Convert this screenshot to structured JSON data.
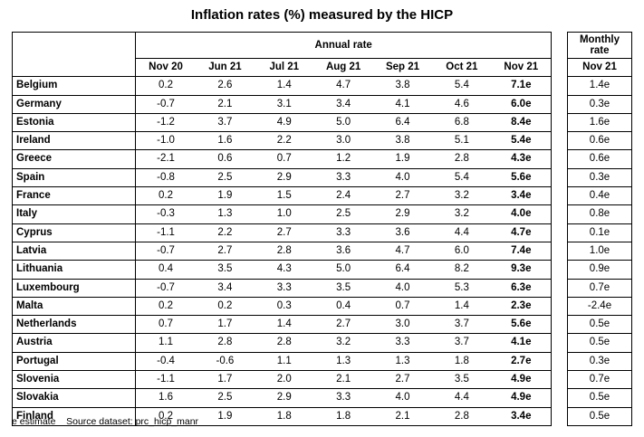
{
  "title": "Inflation rates (%) measured by the HICP",
  "annual_header": "Annual rate",
  "monthly_header_line1": "Monthly",
  "monthly_header_line2": "rate",
  "periods": [
    "Nov 20",
    "Jun 21",
    "Jul 21",
    "Aug 21",
    "Sep 21",
    "Oct 21",
    "Nov 21"
  ],
  "monthly_period": "Nov 21",
  "rows": [
    {
      "country": "Belgium",
      "annual": [
        "0.2",
        "2.6",
        "1.4",
        "4.7",
        "3.8",
        "5.4",
        "7.1e"
      ],
      "monthly": "1.4e"
    },
    {
      "country": "Germany",
      "annual": [
        "-0.7",
        "2.1",
        "3.1",
        "3.4",
        "4.1",
        "4.6",
        "6.0e"
      ],
      "monthly": "0.3e"
    },
    {
      "country": "Estonia",
      "annual": [
        "-1.2",
        "3.7",
        "4.9",
        "5.0",
        "6.4",
        "6.8",
        "8.4e"
      ],
      "monthly": "1.6e"
    },
    {
      "country": "Ireland",
      "annual": [
        "-1.0",
        "1.6",
        "2.2",
        "3.0",
        "3.8",
        "5.1",
        "5.4e"
      ],
      "monthly": "0.6e"
    },
    {
      "country": "Greece",
      "annual": [
        "-2.1",
        "0.6",
        "0.7",
        "1.2",
        "1.9",
        "2.8",
        "4.3e"
      ],
      "monthly": "0.6e"
    },
    {
      "country": "Spain",
      "annual": [
        "-0.8",
        "2.5",
        "2.9",
        "3.3",
        "4.0",
        "5.4",
        "5.6e"
      ],
      "monthly": "0.3e"
    },
    {
      "country": "France",
      "annual": [
        "0.2",
        "1.9",
        "1.5",
        "2.4",
        "2.7",
        "3.2",
        "3.4e"
      ],
      "monthly": "0.4e"
    },
    {
      "country": "Italy",
      "annual": [
        "-0.3",
        "1.3",
        "1.0",
        "2.5",
        "2.9",
        "3.2",
        "4.0e"
      ],
      "monthly": "0.8e"
    },
    {
      "country": "Cyprus",
      "annual": [
        "-1.1",
        "2.2",
        "2.7",
        "3.3",
        "3.6",
        "4.4",
        "4.7e"
      ],
      "monthly": "0.1e"
    },
    {
      "country": "Latvia",
      "annual": [
        "-0.7",
        "2.7",
        "2.8",
        "3.6",
        "4.7",
        "6.0",
        "7.4e"
      ],
      "monthly": "1.0e"
    },
    {
      "country": "Lithuania",
      "annual": [
        "0.4",
        "3.5",
        "4.3",
        "5.0",
        "6.4",
        "8.2",
        "9.3e"
      ],
      "monthly": "0.9e"
    },
    {
      "country": "Luxembourg",
      "annual": [
        "-0.7",
        "3.4",
        "3.3",
        "3.5",
        "4.0",
        "5.3",
        "6.3e"
      ],
      "monthly": "0.7e"
    },
    {
      "country": "Malta",
      "annual": [
        "0.2",
        "0.2",
        "0.3",
        "0.4",
        "0.7",
        "1.4",
        "2.3e"
      ],
      "monthly": "-2.4e"
    },
    {
      "country": "Netherlands",
      "annual": [
        "0.7",
        "1.7",
        "1.4",
        "2.7",
        "3.0",
        "3.7",
        "5.6e"
      ],
      "monthly": "0.5e"
    },
    {
      "country": "Austria",
      "annual": [
        "1.1",
        "2.8",
        "2.8",
        "3.2",
        "3.3",
        "3.7",
        "4.1e"
      ],
      "monthly": "0.5e"
    },
    {
      "country": "Portugal",
      "annual": [
        "-0.4",
        "-0.6",
        "1.1",
        "1.3",
        "1.3",
        "1.8",
        "2.7e"
      ],
      "monthly": "0.3e"
    },
    {
      "country": "Slovenia",
      "annual": [
        "-1.1",
        "1.7",
        "2.0",
        "2.1",
        "2.7",
        "3.5",
        "4.9e"
      ],
      "monthly": "0.7e"
    },
    {
      "country": "Slovakia",
      "annual": [
        "1.6",
        "2.5",
        "2.9",
        "3.3",
        "4.0",
        "4.4",
        "4.9e"
      ],
      "monthly": "0.5e"
    },
    {
      "country": "Finland",
      "annual": [
        "0.2",
        "1.9",
        "1.8",
        "1.8",
        "2.1",
        "2.8",
        "3.4e"
      ],
      "monthly": "0.5e"
    }
  ],
  "footer": {
    "note": "e estimate",
    "source_label": "Source dataset:",
    "source_name": "prc_hicp_manr"
  }
}
